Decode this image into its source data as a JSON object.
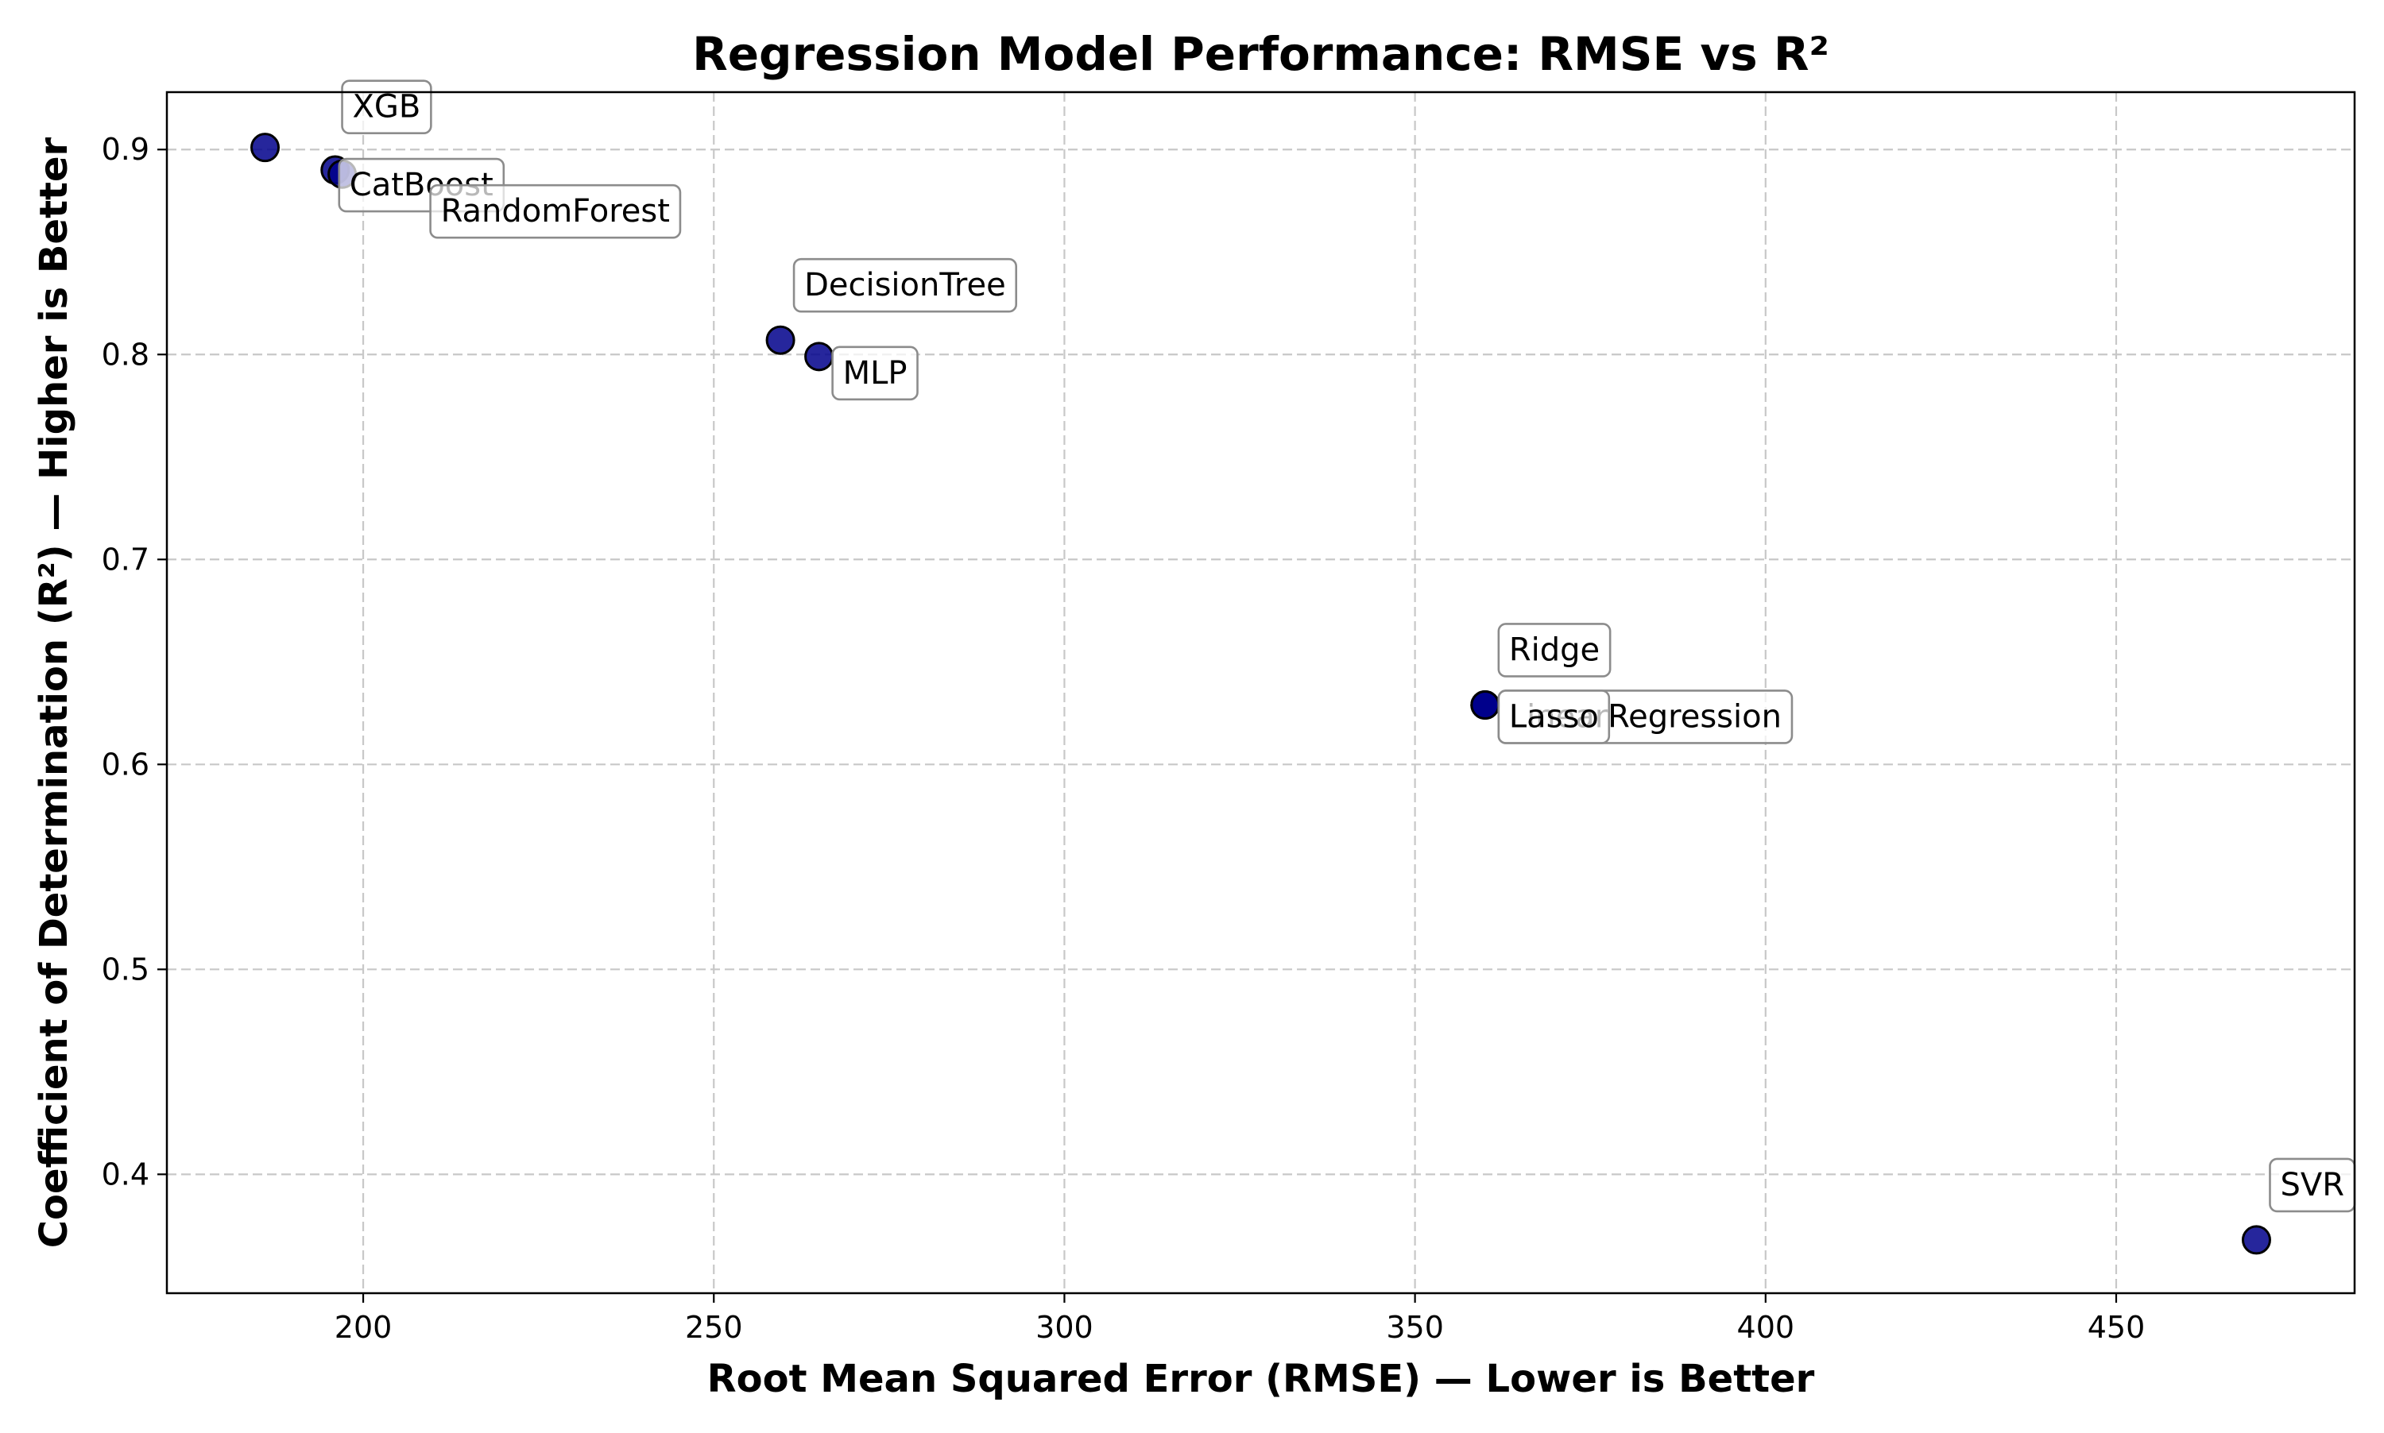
{
  "chart_data": {
    "type": "scatter",
    "title": "Regression Model Performance: RMSE vs R²",
    "xlabel": "Root Mean Squared Error (RMSE) — Lower is Better",
    "ylabel": "Coefficient of Determination (R²) — Higher is Better",
    "xlim": [
      172,
      484
    ],
    "ylim": [
      0.342,
      0.928
    ],
    "xticks": [
      200,
      250,
      300,
      350,
      400,
      450
    ],
    "yticks": [
      0.4,
      0.5,
      0.6,
      0.7,
      0.8,
      0.9
    ],
    "grid": true,
    "legend": "none",
    "marker_color": "#00008b",
    "points": [
      {
        "label": "XGB",
        "x": 186,
        "y": 0.901
      },
      {
        "label": "CatBoost",
        "x": 196,
        "y": 0.89
      },
      {
        "label": "RandomForest",
        "x": 197,
        "y": 0.888
      },
      {
        "label": "DecisionTree",
        "x": 259.5,
        "y": 0.807
      },
      {
        "label": "MLP",
        "x": 265,
        "y": 0.799
      },
      {
        "label": "Ridge",
        "x": 360,
        "y": 0.629
      },
      {
        "label": "LinearRegression",
        "x": 360,
        "y": 0.629
      },
      {
        "label": "Lasso",
        "x": 360,
        "y": 0.629
      },
      {
        "label": "SVR",
        "x": 470,
        "y": 0.368
      }
    ]
  }
}
